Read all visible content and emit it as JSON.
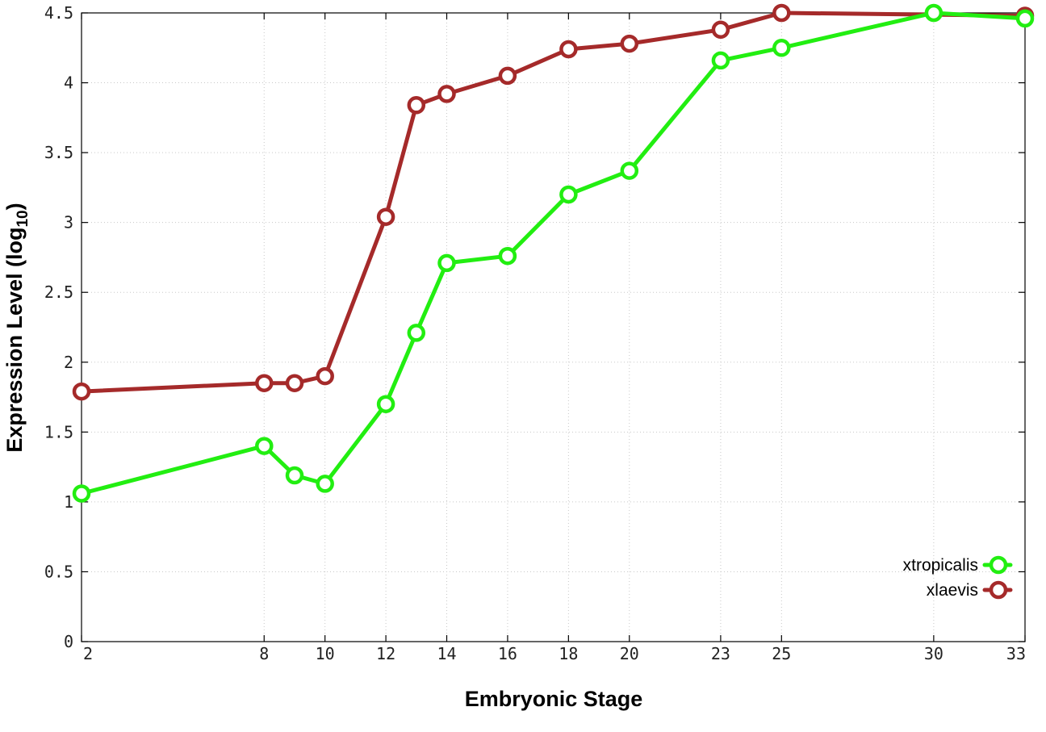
{
  "chart_data": {
    "type": "line",
    "xlabel": "Embryonic Stage",
    "ylabel_main": "Expression Level (log",
    "ylabel_sub": "10",
    "ylabel_close": ")",
    "xlim": [
      2,
      33
    ],
    "ylim": [
      0,
      4.5
    ],
    "x_ticks": [
      2,
      8,
      10,
      12,
      14,
      16,
      18,
      20,
      23,
      25,
      30,
      33
    ],
    "y_ticks": [
      {
        "value": 0,
        "label": "0"
      },
      {
        "value": 0.5,
        "label": "0.5"
      },
      {
        "value": 1,
        "label": "1"
      },
      {
        "value": 1.5,
        "label": "1.5"
      },
      {
        "value": 2,
        "label": "2"
      },
      {
        "value": 2.5,
        "label": "2.5"
      },
      {
        "value": 3,
        "label": "3"
      },
      {
        "value": 3.5,
        "label": "3.5"
      },
      {
        "value": 4,
        "label": "4"
      },
      {
        "value": 4.5,
        "label": "4.5"
      }
    ],
    "grid": true,
    "legend_position": "bottom-right",
    "series": [
      {
        "name": "xtropicalis",
        "color": "#22ee11",
        "x": [
          2,
          8,
          9,
          10,
          12,
          13,
          14,
          16,
          18,
          20,
          23,
          25,
          30,
          33
        ],
        "y": [
          1.06,
          1.4,
          1.19,
          1.13,
          1.7,
          2.21,
          2.71,
          2.76,
          3.2,
          3.37,
          4.16,
          4.25,
          4.5,
          4.46
        ]
      },
      {
        "name": "xlaevis",
        "color": "#a52a2a",
        "x": [
          2,
          8,
          9,
          10,
          12,
          13,
          14,
          16,
          18,
          20,
          23,
          25,
          33
        ],
        "y": [
          1.79,
          1.85,
          1.85,
          1.9,
          3.04,
          3.84,
          3.92,
          4.05,
          4.24,
          4.28,
          4.38,
          4.5,
          4.48
        ]
      }
    ]
  }
}
